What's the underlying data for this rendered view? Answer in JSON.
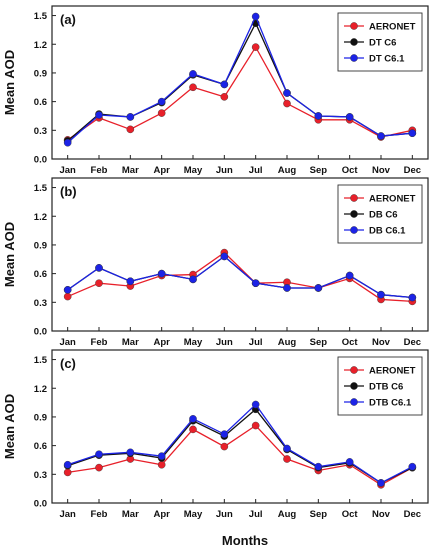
{
  "figure": {
    "xlabel": "Months"
  },
  "colors": {
    "AERONET": "#e8202a",
    "C6": "#111111",
    "C61": "#1c23e6"
  },
  "chart_data": [
    {
      "type": "line",
      "panel_label": "(a)",
      "categories": [
        "Jan",
        "Feb",
        "Mar",
        "Apr",
        "May",
        "Jun",
        "Jul",
        "Aug",
        "Sep",
        "Oct",
        "Nov",
        "Dec"
      ],
      "ylabel": "Mean AOD",
      "ylim": [
        0.0,
        1.6
      ],
      "yticks": [
        "0.0",
        "0.3",
        "0.6",
        "0.9",
        "1.2",
        "1.5"
      ],
      "legend_position": "top-right",
      "series": [
        {
          "name": "AERONET",
          "values": [
            0.2,
            0.43,
            0.31,
            0.48,
            0.75,
            0.65,
            1.17,
            0.58,
            0.41,
            0.41,
            0.23,
            0.3
          ]
        },
        {
          "name": "DT C6",
          "values": [
            0.19,
            0.47,
            0.44,
            0.59,
            0.88,
            0.78,
            1.42,
            0.69,
            0.45,
            0.44,
            0.24,
            0.27
          ]
        },
        {
          "name": "DT C6.1",
          "values": [
            0.17,
            0.46,
            0.44,
            0.6,
            0.89,
            0.78,
            1.49,
            0.69,
            0.45,
            0.44,
            0.24,
            0.27
          ]
        }
      ]
    },
    {
      "type": "line",
      "panel_label": "(b)",
      "categories": [
        "Jan",
        "Feb",
        "Mar",
        "Apr",
        "May",
        "Jun",
        "Jul",
        "Aug",
        "Sep",
        "Oct",
        "Nov",
        "Dec"
      ],
      "ylabel": "Mean AOD",
      "ylim": [
        0.0,
        1.6
      ],
      "yticks": [
        "0.0",
        "0.3",
        "0.6",
        "0.9",
        "1.2",
        "1.5"
      ],
      "legend_position": "top-right",
      "series": [
        {
          "name": "AERONET",
          "values": [
            0.36,
            0.5,
            0.47,
            0.58,
            0.59,
            0.82,
            0.5,
            0.51,
            0.45,
            0.55,
            0.33,
            0.31
          ]
        },
        {
          "name": "DB C6",
          "values": [
            0.43,
            0.66,
            0.52,
            0.6,
            0.54,
            0.78,
            0.5,
            0.45,
            0.45,
            0.58,
            0.38,
            0.35
          ]
        },
        {
          "name": "DB C6.1",
          "values": [
            0.43,
            0.66,
            0.52,
            0.6,
            0.54,
            0.78,
            0.5,
            0.45,
            0.45,
            0.58,
            0.38,
            0.35
          ]
        }
      ]
    },
    {
      "type": "line",
      "panel_label": "(c)",
      "categories": [
        "Jan",
        "Feb",
        "Mar",
        "Apr",
        "May",
        "Jun",
        "Jul",
        "Aug",
        "Sep",
        "Oct",
        "Nov",
        "Dec"
      ],
      "ylabel": "Mean AOD",
      "ylim": [
        0.0,
        1.6
      ],
      "yticks": [
        "0.0",
        "0.3",
        "0.6",
        "0.9",
        "1.2",
        "1.5"
      ],
      "legend_position": "top-right",
      "series": [
        {
          "name": "AERONET",
          "values": [
            0.32,
            0.37,
            0.46,
            0.4,
            0.77,
            0.59,
            0.81,
            0.46,
            0.34,
            0.4,
            0.19,
            0.37
          ]
        },
        {
          "name": "DTB C6",
          "values": [
            0.39,
            0.5,
            0.52,
            0.47,
            0.86,
            0.7,
            0.98,
            0.56,
            0.37,
            0.42,
            0.21,
            0.37
          ]
        },
        {
          "name": "DTB C6.1",
          "values": [
            0.4,
            0.51,
            0.53,
            0.49,
            0.88,
            0.72,
            1.03,
            0.57,
            0.38,
            0.43,
            0.21,
            0.38
          ]
        }
      ]
    }
  ]
}
